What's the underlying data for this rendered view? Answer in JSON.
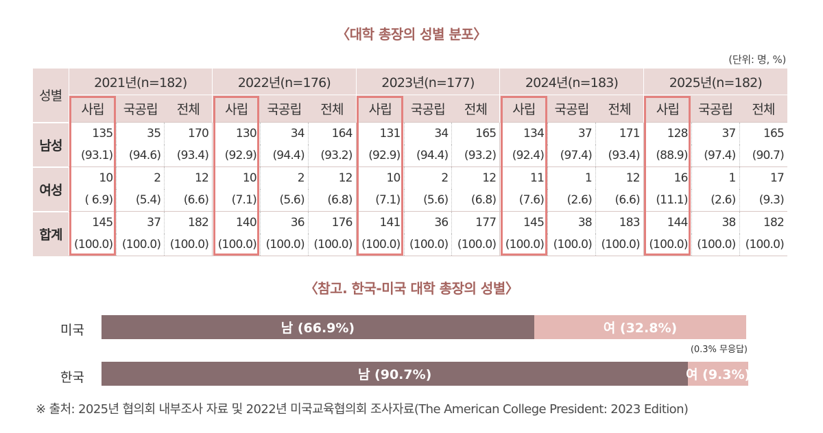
{
  "title": "〈대학 총장의 성별 분포〉",
  "unit": "(단위: 명, %)",
  "table": {
    "row_header": "성별",
    "years": [
      "2021년(n=182)",
      "2022년(n=176)",
      "2023년(n=177)",
      "2024년(n=183)",
      "2025년(n=182)"
    ],
    "sub_headers": [
      "사립",
      "국공립",
      "전체"
    ],
    "rows": [
      {
        "label": "남성",
        "counts": [
          "135",
          "35",
          "170",
          "130",
          "34",
          "164",
          "131",
          "34",
          "165",
          "134",
          "37",
          "171",
          "128",
          "37",
          "165"
        ],
        "pcts": [
          "(93.1)",
          "(94.6)",
          "(93.4)",
          "(92.9)",
          "(94.4)",
          "(93.2)",
          "(92.9)",
          "(94.4)",
          "(93.2)",
          "(92.4)",
          "(97.4)",
          "(93.4)",
          "(88.9)",
          "(97.4)",
          "(90.7)"
        ]
      },
      {
        "label": "여성",
        "counts": [
          "10",
          "2",
          "12",
          "10",
          "2",
          "12",
          "10",
          "2",
          "12",
          "11",
          "1",
          "12",
          "16",
          "1",
          "17"
        ],
        "pcts": [
          "( 6.9)",
          "(5.4)",
          "(6.6)",
          "(7.1)",
          "(5.6)",
          "(6.8)",
          "(7.1)",
          "(5.6)",
          "(6.8)",
          "(7.6)",
          "(2.6)",
          "(6.6)",
          "(11.1)",
          "(2.6)",
          "(9.3)"
        ]
      },
      {
        "label": "합계",
        "counts": [
          "145",
          "37",
          "182",
          "140",
          "36",
          "176",
          "141",
          "36",
          "177",
          "145",
          "38",
          "183",
          "144",
          "38",
          "182"
        ],
        "pcts": [
          "(100.0)",
          "(100.0)",
          "(100.0)",
          "(100.0)",
          "(100.0)",
          "(100.0)",
          "(100.0)",
          "(100.0)",
          "(100.0)",
          "(100.0)",
          "(100.0)",
          "(100.0)",
          "(100.0)",
          "(100.0)",
          "(100.0)"
        ]
      }
    ],
    "highlight_color": "#e3817e",
    "header_bg": "#ead8d6"
  },
  "reference": {
    "title": "〈참고. 한국-미국 대학 총장의 성별〉",
    "bars": [
      {
        "country": "미국",
        "male_label": "남 (66.9%)",
        "male": 66.9,
        "female_label": "여 (32.8%)",
        "female": 32.8,
        "no_response": 0.3
      },
      {
        "country": "한국",
        "male_label": "남 (90.7%)",
        "male": 90.7,
        "female_label": "여 (9.3%)",
        "female": 9.3,
        "no_response": 0
      }
    ],
    "no_response_note": "(0.3% 무응답)",
    "male_color": "#876d6f",
    "female_color": "#e5b8b4"
  },
  "source": "※ 출처: 2025년 협의회 내부조사 자료 및 2022년 미국교육협의회 조사자료(The American College President: 2023 Edition)"
}
